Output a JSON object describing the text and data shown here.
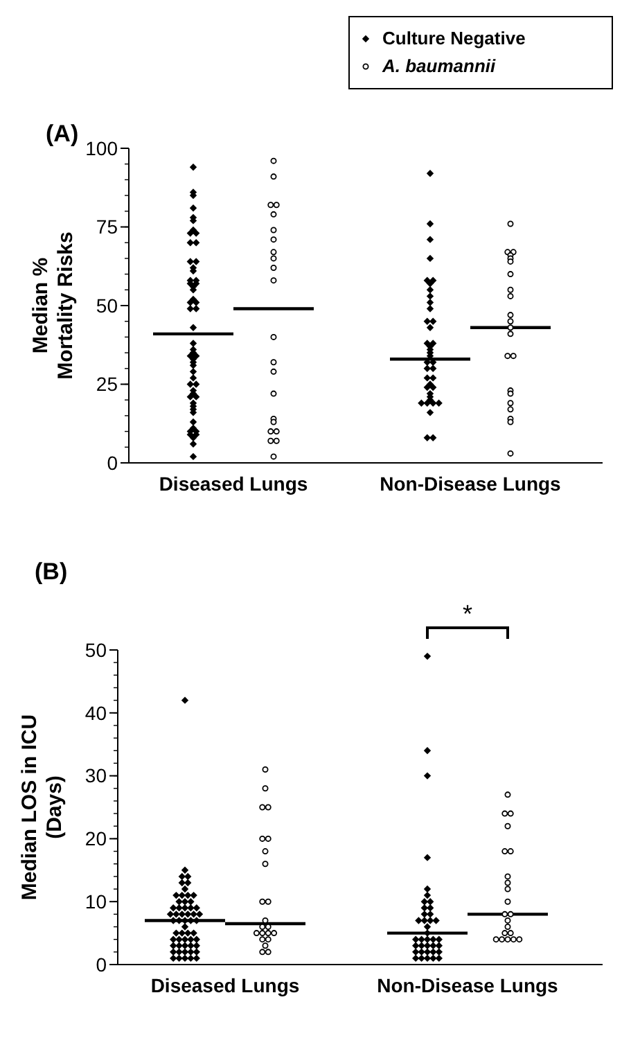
{
  "chart_data": [
    {
      "type": "scatter",
      "title": "(A)",
      "ylabel": "Median %\nMortality Risks",
      "categories": [
        "Diseased Lungs",
        "Non-Disease Lungs"
      ],
      "ylim": [
        0,
        100
      ],
      "yticks": [
        0,
        25,
        50,
        75,
        100
      ],
      "legend": "top right",
      "ref_lines": [
        {
          "axis": "y",
          "value": 41,
          "color": "#000000"
        },
        {
          "axis": "y",
          "value": 49,
          "color": "#000000"
        },
        {
          "axis": "y",
          "value": 33,
          "color": "#000000"
        },
        {
          "axis": "y",
          "value": 43,
          "color": "#000000"
        }
      ],
      "series": [
        {
          "name": "Culture Negative",
          "color": "#000000",
          "marker": "diamond",
          "x": [
            "Diseased Lungs",
            "Diseased Lungs",
            "Diseased Lungs",
            "Diseased Lungs",
            "Diseased Lungs",
            "Diseased Lungs",
            "Diseased Lungs",
            "Diseased Lungs",
            "Diseased Lungs",
            "Diseased Lungs",
            "Diseased Lungs",
            "Diseased Lungs",
            "Diseased Lungs",
            "Diseased Lungs",
            "Diseased Lungs",
            "Diseased Lungs",
            "Diseased Lungs",
            "Diseased Lungs",
            "Diseased Lungs",
            "Diseased Lungs",
            "Diseased Lungs",
            "Diseased Lungs",
            "Diseased Lungs",
            "Diseased Lungs",
            "Diseased Lungs",
            "Diseased Lungs",
            "Diseased Lungs",
            "Diseased Lungs",
            "Diseased Lungs",
            "Diseased Lungs",
            "Diseased Lungs",
            "Diseased Lungs",
            "Diseased Lungs",
            "Diseased Lungs",
            "Diseased Lungs",
            "Diseased Lungs",
            "Diseased Lungs",
            "Diseased Lungs",
            "Diseased Lungs",
            "Diseased Lungs",
            "Diseased Lungs",
            "Diseased Lungs",
            "Diseased Lungs",
            "Diseased Lungs",
            "Diseased Lungs",
            "Diseased Lungs",
            "Diseased Lungs",
            "Diseased Lungs",
            "Diseased Lungs",
            "Diseased Lungs",
            "Diseased Lungs",
            "Diseased Lungs",
            "Diseased Lungs",
            "Diseased Lungs",
            "Diseased Lungs",
            "Diseased Lungs",
            "Non-Disease Lungs",
            "Non-Disease Lungs",
            "Non-Disease Lungs",
            "Non-Disease Lungs",
            "Non-Disease Lungs",
            "Non-Disease Lungs",
            "Non-Disease Lungs",
            "Non-Disease Lungs",
            "Non-Disease Lungs",
            "Non-Disease Lungs",
            "Non-Disease Lungs",
            "Non-Disease Lungs",
            "Non-Disease Lungs",
            "Non-Disease Lungs",
            "Non-Disease Lungs",
            "Non-Disease Lungs",
            "Non-Disease Lungs",
            "Non-Disease Lungs",
            "Non-Disease Lungs",
            "Non-Disease Lungs",
            "Non-Disease Lungs",
            "Non-Disease Lungs",
            "Non-Disease Lungs",
            "Non-Disease Lungs",
            "Non-Disease Lungs",
            "Non-Disease Lungs",
            "Non-Disease Lungs",
            "Non-Disease Lungs",
            "Non-Disease Lungs",
            "Non-Disease Lungs",
            "Non-Disease Lungs",
            "Non-Disease Lungs",
            "Non-Disease Lungs",
            "Non-Disease Lungs",
            "Non-Disease Lungs",
            "Non-Disease Lungs",
            "Non-Disease Lungs",
            "Non-Disease Lungs",
            "Non-Disease Lungs"
          ],
          "values": [
            94,
            86,
            85,
            81,
            78,
            77,
            74,
            73,
            73,
            70,
            70,
            64,
            64,
            62,
            61,
            58,
            58,
            57,
            57,
            56,
            55,
            52,
            51,
            51,
            49,
            49,
            43,
            38,
            36,
            35,
            34,
            34,
            33,
            32,
            31,
            29,
            27,
            25,
            25,
            23,
            22,
            21,
            21,
            19,
            18,
            17,
            16,
            13,
            11,
            10,
            10,
            9,
            9,
            8,
            6,
            2,
            92,
            76,
            71,
            65,
            58,
            58,
            57,
            55,
            53,
            51,
            49,
            45,
            45,
            43,
            38,
            38,
            37,
            36,
            35,
            34,
            32,
            32,
            30,
            30,
            27,
            27,
            25,
            24,
            24,
            22,
            21,
            20,
            19,
            19,
            19,
            19,
            16,
            8,
            8
          ]
        },
        {
          "name": "A. baumannii",
          "color": "#000000",
          "marker": "circle",
          "x": [
            "Diseased Lungs",
            "Diseased Lungs",
            "Diseased Lungs",
            "Diseased Lungs",
            "Diseased Lungs",
            "Diseased Lungs",
            "Diseased Lungs",
            "Diseased Lungs",
            "Diseased Lungs",
            "Diseased Lungs",
            "Diseased Lungs",
            "Diseased Lungs",
            "Diseased Lungs",
            "Diseased Lungs",
            "Diseased Lungs",
            "Diseased Lungs",
            "Diseased Lungs",
            "Diseased Lungs",
            "Diseased Lungs",
            "Diseased Lungs",
            "Diseased Lungs",
            "Diseased Lungs",
            "Non-Disease Lungs",
            "Non-Disease Lungs",
            "Non-Disease Lungs",
            "Non-Disease Lungs",
            "Non-Disease Lungs",
            "Non-Disease Lungs",
            "Non-Disease Lungs",
            "Non-Disease Lungs",
            "Non-Disease Lungs",
            "Non-Disease Lungs",
            "Non-Disease Lungs",
            "Non-Disease Lungs",
            "Non-Disease Lungs",
            "Non-Disease Lungs",
            "Non-Disease Lungs",
            "Non-Disease Lungs",
            "Non-Disease Lungs",
            "Non-Disease Lungs",
            "Non-Disease Lungs",
            "Non-Disease Lungs",
            "Non-Disease Lungs",
            "Non-Disease Lungs"
          ],
          "values": [
            96,
            91,
            82,
            82,
            79,
            74,
            71,
            67,
            65,
            62,
            58,
            40,
            32,
            29,
            22,
            14,
            13,
            10,
            10,
            7,
            7,
            2,
            76,
            67,
            67,
            66,
            65,
            64,
            60,
            55,
            53,
            47,
            45,
            43,
            41,
            34,
            34,
            23,
            22,
            19,
            17,
            14,
            13,
            3
          ]
        }
      ]
    },
    {
      "type": "scatter",
      "title": "(B)",
      "ylabel": "Median LOS in ICU\n(Days)",
      "categories": [
        "Diseased Lungs",
        "Non-Disease Lungs"
      ],
      "ylim": [
        0,
        50
      ],
      "yticks": [
        0,
        10,
        20,
        30,
        40,
        50
      ],
      "annotations": [
        "*"
      ],
      "ref_lines": [
        {
          "axis": "y",
          "value": 7,
          "color": "#000000"
        },
        {
          "axis": "y",
          "value": 6.5,
          "color": "#000000"
        },
        {
          "axis": "y",
          "value": 5,
          "color": "#000000"
        },
        {
          "axis": "y",
          "value": 8,
          "color": "#000000"
        }
      ],
      "series": [
        {
          "color": "#000000",
          "marker": "diamond",
          "x": [
            "Diseased Lungs",
            "Diseased Lungs",
            "Diseased Lungs",
            "Diseased Lungs",
            "Diseased Lungs",
            "Diseased Lungs",
            "Diseased Lungs",
            "Diseased Lungs",
            "Diseased Lungs",
            "Diseased Lungs",
            "Diseased Lungs",
            "Diseased Lungs",
            "Diseased Lungs",
            "Diseased Lungs",
            "Diseased Lungs",
            "Diseased Lungs",
            "Diseased Lungs",
            "Diseased Lungs",
            "Diseased Lungs",
            "Diseased Lungs",
            "Diseased Lungs",
            "Diseased Lungs",
            "Diseased Lungs",
            "Diseased Lungs",
            "Diseased Lungs",
            "Diseased Lungs",
            "Diseased Lungs",
            "Diseased Lungs",
            "Diseased Lungs",
            "Diseased Lungs",
            "Diseased Lungs",
            "Diseased Lungs",
            "Diseased Lungs",
            "Diseased Lungs",
            "Diseased Lungs",
            "Diseased Lungs",
            "Diseased Lungs",
            "Diseased Lungs",
            "Diseased Lungs",
            "Diseased Lungs",
            "Diseased Lungs",
            "Diseased Lungs",
            "Diseased Lungs",
            "Diseased Lungs",
            "Diseased Lungs",
            "Diseased Lungs",
            "Diseased Lungs",
            "Diseased Lungs",
            "Diseased Lungs",
            "Diseased Lungs",
            "Diseased Lungs",
            "Diseased Lungs",
            "Diseased Lungs",
            "Diseased Lungs",
            "Diseased Lungs",
            "Non-Disease Lungs",
            "Non-Disease Lungs",
            "Non-Disease Lungs",
            "Non-Disease Lungs",
            "Non-Disease Lungs",
            "Non-Disease Lungs",
            "Non-Disease Lungs",
            "Non-Disease Lungs",
            "Non-Disease Lungs",
            "Non-Disease Lungs",
            "Non-Disease Lungs",
            "Non-Disease Lungs",
            "Non-Disease Lungs",
            "Non-Disease Lungs",
            "Non-Disease Lungs",
            "Non-Disease Lungs",
            "Non-Disease Lungs",
            "Non-Disease Lungs",
            "Non-Disease Lungs",
            "Non-Disease Lungs",
            "Non-Disease Lungs",
            "Non-Disease Lungs",
            "Non-Disease Lungs",
            "Non-Disease Lungs",
            "Non-Disease Lungs",
            "Non-Disease Lungs",
            "Non-Disease Lungs",
            "Non-Disease Lungs",
            "Non-Disease Lungs",
            "Non-Disease Lungs",
            "Non-Disease Lungs",
            "Non-Disease Lungs",
            "Non-Disease Lungs",
            "Non-Disease Lungs",
            "Non-Disease Lungs",
            "Non-Disease Lungs",
            "Non-Disease Lungs",
            "Non-Disease Lungs"
          ],
          "values": [
            42,
            15,
            14,
            14,
            13,
            13,
            12,
            11,
            11,
            11,
            11,
            10,
            10,
            10,
            9,
            9,
            9,
            9,
            9,
            8,
            8,
            8,
            8,
            8,
            8,
            7,
            7,
            7,
            7,
            7,
            6,
            5,
            5,
            5,
            5,
            4,
            4,
            4,
            4,
            4,
            3,
            3,
            3,
            3,
            3,
            2,
            2,
            2,
            2,
            2,
            1,
            1,
            1,
            1,
            1,
            49,
            34,
            30,
            17,
            12,
            11,
            10,
            10,
            9,
            9,
            8,
            8,
            7,
            7,
            7,
            7,
            6,
            5,
            4,
            4,
            4,
            4,
            4,
            3,
            3,
            3,
            3,
            3,
            2,
            2,
            2,
            2,
            2,
            1,
            1,
            1,
            1,
            1
          ]
        },
        {
          "color": "#000000",
          "marker": "circle",
          "x": [
            "Diseased Lungs",
            "Diseased Lungs",
            "Diseased Lungs",
            "Diseased Lungs",
            "Diseased Lungs",
            "Diseased Lungs",
            "Diseased Lungs",
            "Diseased Lungs",
            "Diseased Lungs",
            "Diseased Lungs",
            "Diseased Lungs",
            "Diseased Lungs",
            "Diseased Lungs",
            "Diseased Lungs",
            "Diseased Lungs",
            "Diseased Lungs",
            "Diseased Lungs",
            "Diseased Lungs",
            "Diseased Lungs",
            "Diseased Lungs",
            "Diseased Lungs",
            "Diseased Lungs",
            "Non-Disease Lungs",
            "Non-Disease Lungs",
            "Non-Disease Lungs",
            "Non-Disease Lungs",
            "Non-Disease Lungs",
            "Non-Disease Lungs",
            "Non-Disease Lungs",
            "Non-Disease Lungs",
            "Non-Disease Lungs",
            "Non-Disease Lungs",
            "Non-Disease Lungs",
            "Non-Disease Lungs",
            "Non-Disease Lungs",
            "Non-Disease Lungs",
            "Non-Disease Lungs",
            "Non-Disease Lungs",
            "Non-Disease Lungs",
            "Non-Disease Lungs",
            "Non-Disease Lungs",
            "Non-Disease Lungs",
            "Non-Disease Lungs"
          ],
          "values": [
            31,
            28,
            25,
            25,
            20,
            20,
            18,
            16,
            10,
            10,
            7,
            6,
            6,
            5,
            5,
            5,
            5,
            4,
            4,
            3,
            2,
            2,
            27,
            24,
            24,
            22,
            18,
            18,
            14,
            13,
            12,
            10,
            8,
            8,
            7,
            6,
            5,
            5,
            4,
            4,
            4,
            4,
            4
          ]
        }
      ]
    }
  ]
}
